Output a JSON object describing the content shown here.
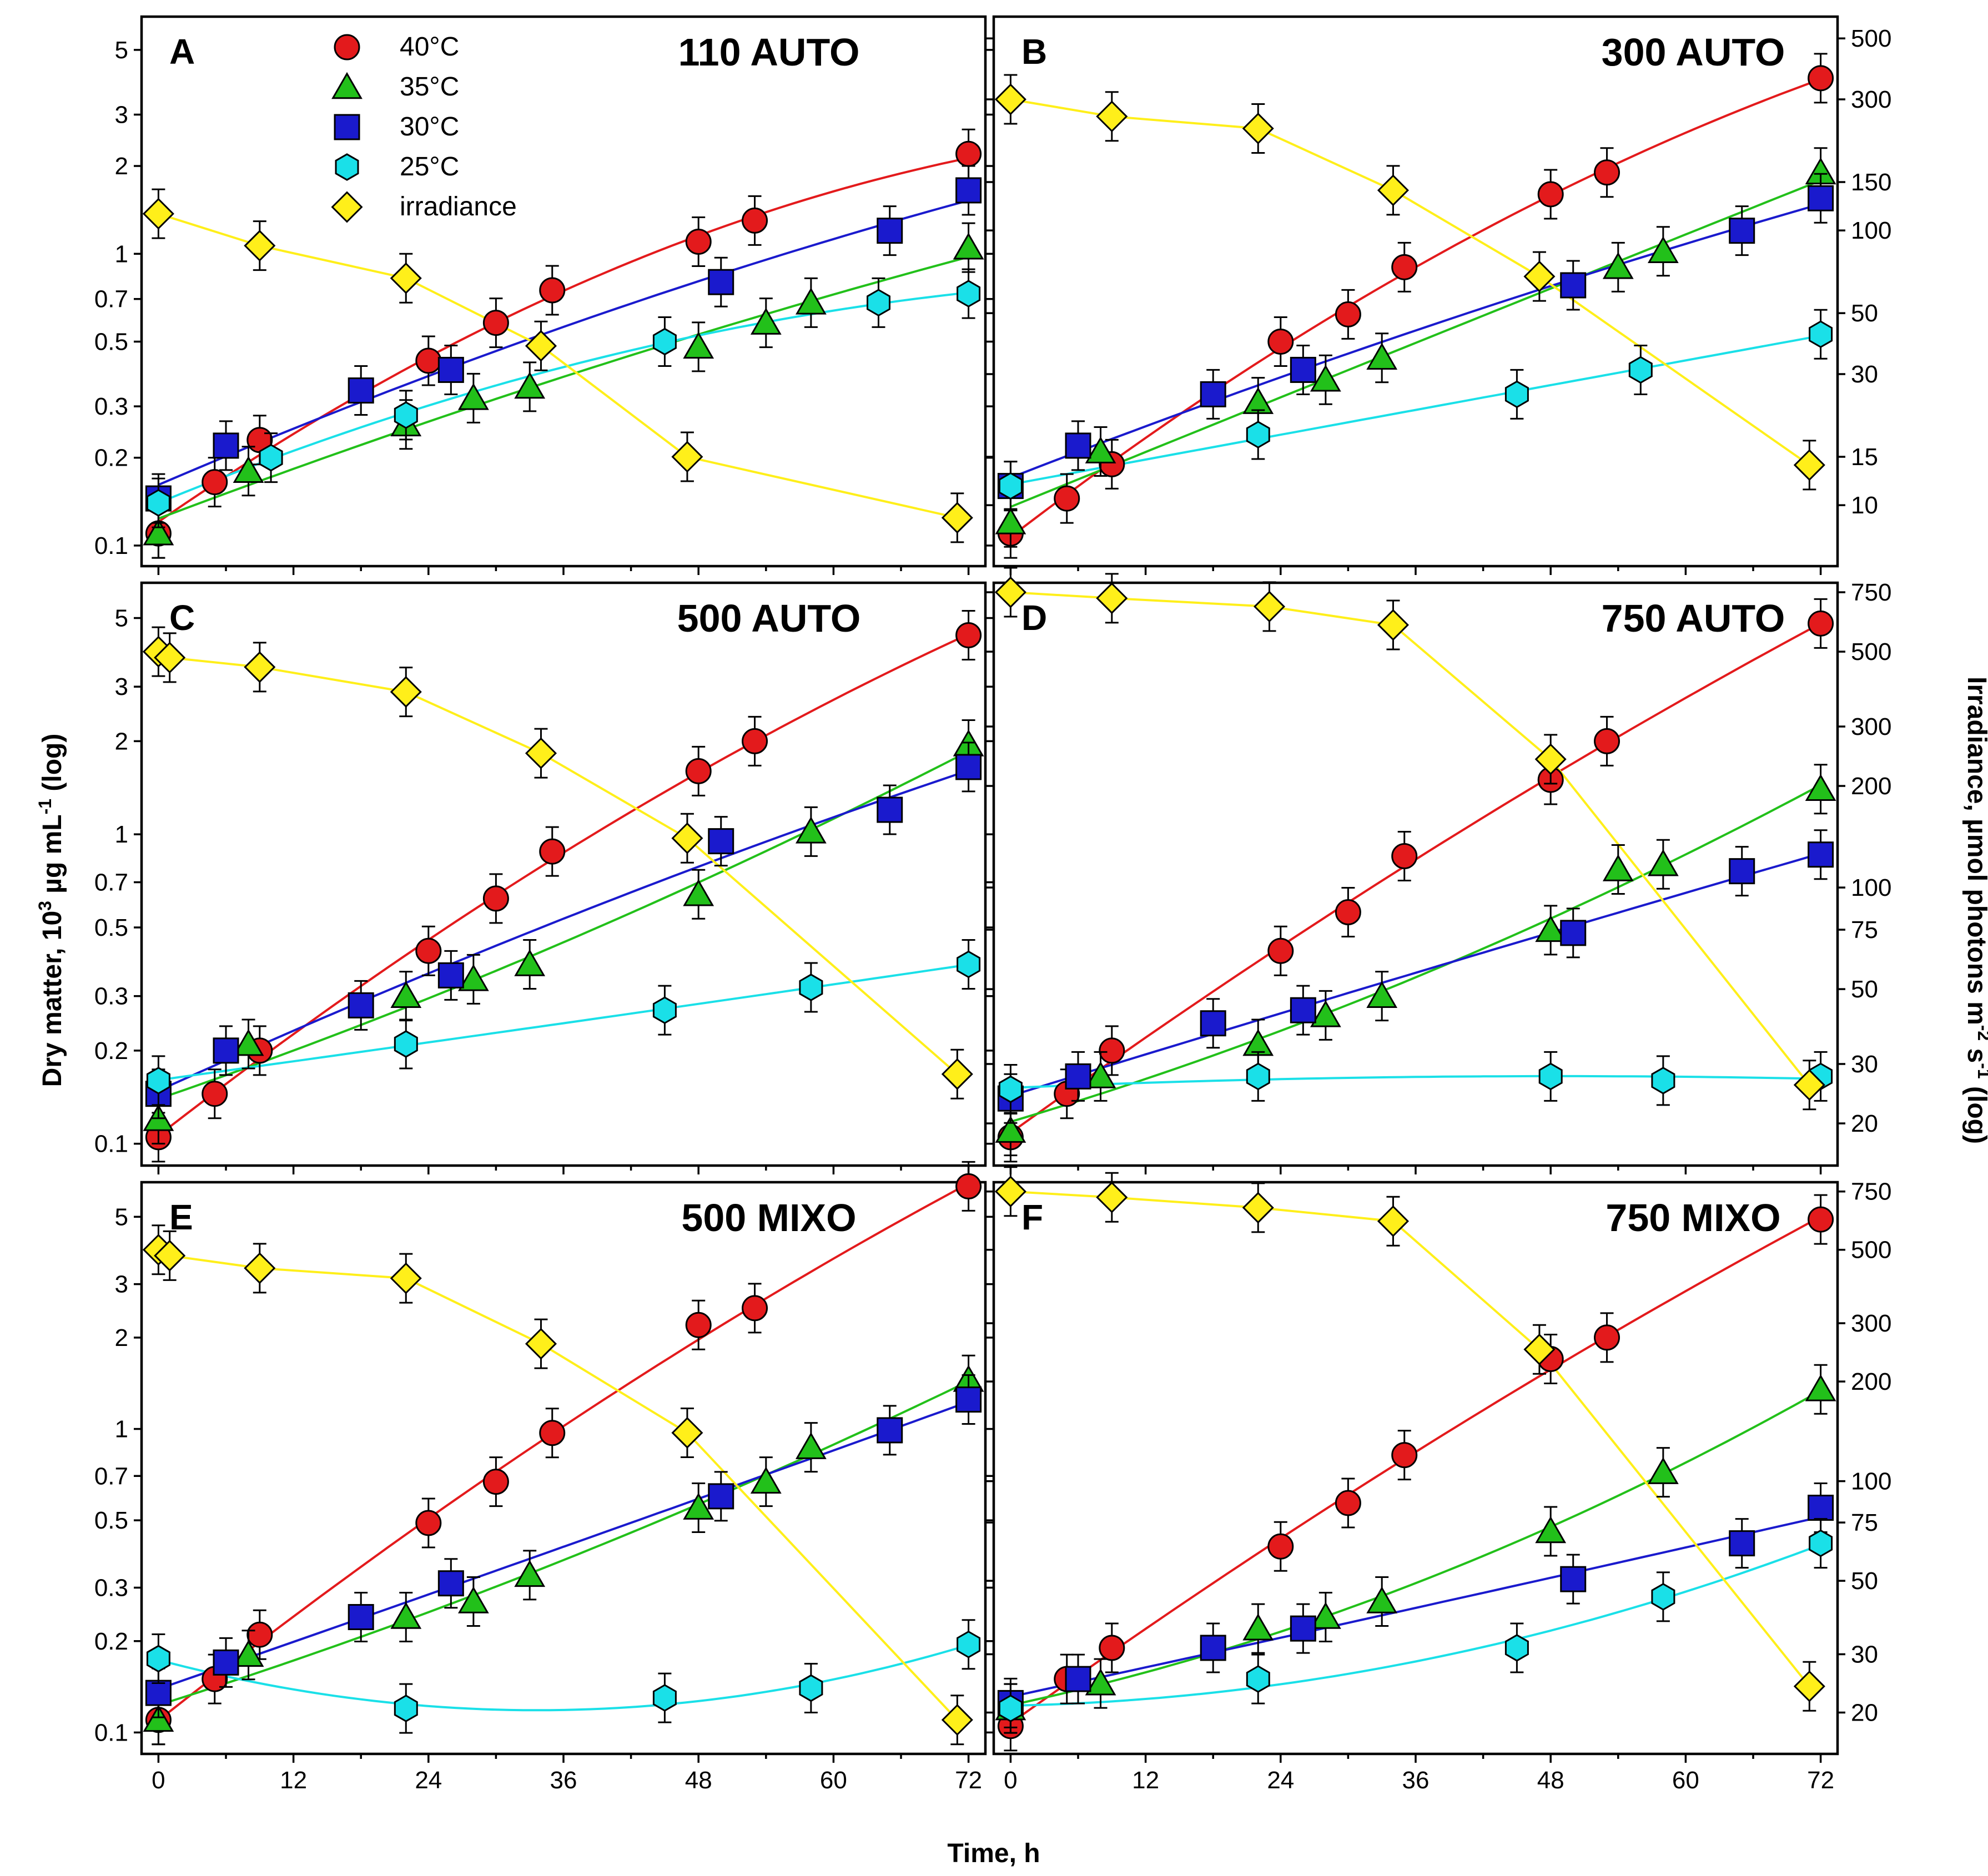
{
  "figure": {
    "x_label": "Time, h",
    "y_label_left": {
      "a": "Dry matter, 10",
      "sup1": "3",
      "b": " µg mL",
      "sup2": "-1",
      "c": " (log)"
    },
    "y_label_right": {
      "a": "Irradiance, µmol photons m",
      "sup1": "-2",
      "b": " s",
      "sup2": "-1",
      "c": " (log)"
    },
    "legend": [
      "40°C",
      "35°C",
      "30°C",
      "25°C",
      "irradiance"
    ]
  },
  "chart_data": [
    {
      "type": "scatter",
      "panel": "A",
      "title": "110 AUTO",
      "xlabel": "Time, h",
      "ylabel": "Dry matter, 10^3 µg mL-1 (log)",
      "y2label": "Irradiance, µmol photons m-2 s-1 (log)",
      "xlim": [
        -1.5,
        73.5
      ],
      "ylim": [
        0.085,
        6.5
      ],
      "y2lim": [
        6,
        600
      ],
      "xticks": [
        0,
        12,
        24,
        36,
        48,
        60,
        72
      ],
      "yticks": [
        0.1,
        0.2,
        0.3,
        0.5,
        0.7,
        1,
        2,
        3,
        5
      ],
      "y2ticks": [
        10,
        15,
        30,
        50,
        100,
        150,
        300,
        500
      ],
      "fit": "quadratic in log(y) for temperature series; straight segments for irradiance",
      "series": [
        {
          "name": "40°C",
          "color": "#e31a1c",
          "marker": "circle",
          "x": [
            0,
            5,
            9,
            24,
            30,
            35,
            48,
            53,
            72
          ],
          "y": [
            0.11,
            0.165,
            0.23,
            0.43,
            0.58,
            0.75,
            1.1,
            1.3,
            2.2
          ]
        },
        {
          "name": "35°C",
          "color": "#22c01a",
          "marker": "triangle",
          "x": [
            0,
            8,
            22,
            28,
            33,
            48,
            54,
            58,
            72
          ],
          "y": [
            0.11,
            0.18,
            0.26,
            0.32,
            0.35,
            0.48,
            0.58,
            0.68,
            1.05
          ]
        },
        {
          "name": "30°C",
          "color": "#1a1acd",
          "marker": "square",
          "x": [
            0,
            6,
            18,
            26,
            50,
            65,
            72
          ],
          "y": [
            0.145,
            0.22,
            0.34,
            0.4,
            0.8,
            1.2,
            1.65
          ]
        },
        {
          "name": "25°C",
          "color": "#1ae0e8",
          "marker": "hexagon",
          "x": [
            0,
            10,
            22,
            45,
            64,
            72
          ],
          "y": [
            0.14,
            0.2,
            0.28,
            0.5,
            0.68,
            0.73
          ]
        },
        {
          "name": "irradiance",
          "color": "#ffef1a",
          "marker": "diamond",
          "axis": "right",
          "x": [
            0,
            9,
            22,
            34,
            47,
            71
          ],
          "y": [
            115,
            88,
            67,
            38,
            15,
            9
          ]
        }
      ]
    },
    {
      "type": "scatter",
      "panel": "B",
      "title": "300 AUTO",
      "xlabel": "Time, h",
      "xlim": [
        -1.5,
        73.5
      ],
      "ylim": [
        0.085,
        6.5
      ],
      "y2lim": [
        6,
        600
      ],
      "xticks": [
        0,
        12,
        24,
        36,
        48,
        60,
        72
      ],
      "yticks": [
        0.1,
        0.2,
        0.3,
        0.5,
        0.7,
        1,
        2,
        3,
        5
      ],
      "y2ticks": [
        10,
        15,
        30,
        50,
        100,
        150,
        300,
        500
      ],
      "series": [
        {
          "name": "40°C",
          "color": "#e31a1c",
          "marker": "circle",
          "x": [
            0,
            5,
            9,
            24,
            30,
            35,
            48,
            53,
            72
          ],
          "y": [
            0.11,
            0.145,
            0.19,
            0.5,
            0.62,
            0.9,
            1.6,
            1.9,
            4.0
          ]
        },
        {
          "name": "35°C",
          "color": "#22c01a",
          "marker": "triangle",
          "x": [
            0,
            8,
            22,
            28,
            33,
            54,
            58,
            72
          ],
          "y": [
            0.12,
            0.21,
            0.31,
            0.37,
            0.44,
            0.9,
            1.02,
            1.9
          ]
        },
        {
          "name": "30°C",
          "color": "#1a1acd",
          "marker": "square",
          "x": [
            0,
            6,
            18,
            26,
            50,
            65,
            72
          ],
          "y": [
            0.16,
            0.22,
            0.33,
            0.4,
            0.78,
            1.2,
            1.55
          ]
        },
        {
          "name": "25°C",
          "color": "#1ae0e8",
          "marker": "hexagon",
          "x": [
            0,
            22,
            45,
            56,
            72
          ],
          "y": [
            0.16,
            0.24,
            0.33,
            0.4,
            0.53
          ]
        },
        {
          "name": "irradiance",
          "color": "#ffef1a",
          "marker": "diamond",
          "axis": "right",
          "x": [
            0,
            9,
            22,
            34,
            47,
            71
          ],
          "y": [
            300,
            260,
            235,
            140,
            68,
            14
          ]
        }
      ]
    },
    {
      "type": "scatter",
      "panel": "C",
      "title": "500 AUTO",
      "xlabel": "Time, h",
      "xlim": [
        -1.5,
        73.5
      ],
      "ylim": [
        0.085,
        6.5
      ],
      "y2lim": [
        15,
        800
      ],
      "xticks": [
        0,
        12,
        24,
        36,
        48,
        60,
        72
      ],
      "yticks": [
        0.1,
        0.2,
        0.3,
        0.5,
        0.7,
        1,
        2,
        3,
        5
      ],
      "y2ticks": [
        20,
        30,
        50,
        75,
        100,
        200,
        300,
        500,
        750
      ],
      "series": [
        {
          "name": "40°C",
          "color": "#e31a1c",
          "marker": "circle",
          "x": [
            0,
            5,
            9,
            24,
            30,
            35,
            48,
            53,
            72
          ],
          "y": [
            0.105,
            0.145,
            0.2,
            0.42,
            0.62,
            0.88,
            1.6,
            2.0,
            4.4
          ]
        },
        {
          "name": "35°C",
          "color": "#22c01a",
          "marker": "triangle",
          "x": [
            0,
            8,
            22,
            28,
            33,
            48,
            58,
            72
          ],
          "y": [
            0.12,
            0.21,
            0.3,
            0.34,
            0.38,
            0.64,
            1.02,
            1.95
          ]
        },
        {
          "name": "30°C",
          "color": "#1a1acd",
          "marker": "square",
          "x": [
            0,
            6,
            18,
            26,
            50,
            65,
            72
          ],
          "y": [
            0.145,
            0.2,
            0.28,
            0.35,
            0.95,
            1.2,
            1.65
          ]
        },
        {
          "name": "25°C",
          "color": "#1ae0e8",
          "marker": "hexagon",
          "x": [
            0,
            22,
            45,
            58,
            72
          ],
          "y": [
            0.16,
            0.21,
            0.27,
            0.32,
            0.38
          ]
        },
        {
          "name": "irradiance",
          "color": "#ffef1a",
          "marker": "diamond",
          "axis": "right",
          "x": [
            0,
            1,
            9,
            22,
            34,
            47,
            71
          ],
          "y": [
            500,
            480,
            450,
            380,
            250,
            140,
            28
          ]
        }
      ]
    },
    {
      "type": "scatter",
      "panel": "D",
      "title": "750 AUTO",
      "xlabel": "Time, h",
      "xlim": [
        -1.5,
        73.5
      ],
      "ylim": [
        0.085,
        6.5
      ],
      "y2lim": [
        15,
        800
      ],
      "xticks": [
        0,
        12,
        24,
        36,
        48,
        60,
        72
      ],
      "yticks": [
        0.1,
        0.2,
        0.3,
        0.5,
        0.7,
        1,
        2,
        3,
        5
      ],
      "y2ticks": [
        20,
        30,
        50,
        75,
        100,
        200,
        300,
        500,
        750
      ],
      "series": [
        {
          "name": "40°C",
          "color": "#e31a1c",
          "marker": "circle",
          "x": [
            0,
            5,
            9,
            24,
            30,
            35,
            48,
            53,
            72
          ],
          "y": [
            0.105,
            0.145,
            0.2,
            0.42,
            0.56,
            0.85,
            1.5,
            2.0,
            4.8
          ]
        },
        {
          "name": "35°C",
          "color": "#22c01a",
          "marker": "triangle",
          "x": [
            0,
            8,
            22,
            28,
            33,
            48,
            54,
            58,
            72
          ],
          "y": [
            0.11,
            0.165,
            0.21,
            0.26,
            0.3,
            0.49,
            0.77,
            0.8,
            1.4
          ]
        },
        {
          "name": "30°C",
          "color": "#1a1acd",
          "marker": "square",
          "x": [
            0,
            6,
            18,
            26,
            50,
            65,
            72
          ],
          "y": [
            0.14,
            0.165,
            0.245,
            0.27,
            0.48,
            0.76,
            0.86
          ]
        },
        {
          "name": "25°C",
          "color": "#1ae0e8",
          "marker": "hexagon",
          "x": [
            0,
            22,
            48,
            58,
            72
          ],
          "y": [
            0.15,
            0.165,
            0.165,
            0.16,
            0.165
          ]
        },
        {
          "name": "irradiance",
          "color": "#ffef1a",
          "marker": "diamond",
          "axis": "right",
          "x": [
            0,
            9,
            23,
            34,
            48,
            71
          ],
          "y": [
            750,
            720,
            680,
            600,
            240,
            26
          ]
        }
      ]
    },
    {
      "type": "scatter",
      "panel": "E",
      "title": "500 MIXO",
      "xlabel": "Time, h",
      "xlim": [
        -1.5,
        73.5
      ],
      "ylim": [
        0.085,
        6.5
      ],
      "y2lim": [
        15,
        800
      ],
      "xticks": [
        0,
        12,
        24,
        36,
        48,
        60,
        72
      ],
      "yticks": [
        0.1,
        0.2,
        0.3,
        0.5,
        0.7,
        1,
        2,
        3,
        5
      ],
      "y2ticks": [
        20,
        30,
        50,
        75,
        100,
        200,
        300,
        500,
        750
      ],
      "series": [
        {
          "name": "40°C",
          "color": "#e31a1c",
          "marker": "circle",
          "x": [
            0,
            5,
            9,
            24,
            30,
            35,
            48,
            53,
            72
          ],
          "y": [
            0.11,
            0.15,
            0.21,
            0.49,
            0.67,
            0.97,
            2.2,
            2.5,
            6.3
          ]
        },
        {
          "name": "35°C",
          "color": "#22c01a",
          "marker": "triangle",
          "x": [
            0,
            8,
            22,
            28,
            33,
            48,
            54,
            58,
            72
          ],
          "y": [
            0.11,
            0.18,
            0.24,
            0.27,
            0.33,
            0.55,
            0.67,
            0.87,
            1.45
          ]
        },
        {
          "name": "30°C",
          "color": "#1a1acd",
          "marker": "square",
          "x": [
            0,
            6,
            18,
            26,
            50,
            65,
            72
          ],
          "y": [
            0.135,
            0.17,
            0.24,
            0.31,
            0.6,
            0.99,
            1.25
          ]
        },
        {
          "name": "25°C",
          "color": "#1ae0e8",
          "marker": "hexagon",
          "x": [
            0,
            22,
            45,
            58,
            72
          ],
          "y": [
            0.175,
            0.12,
            0.13,
            0.14,
            0.195
          ]
        },
        {
          "name": "irradiance",
          "color": "#ffef1a",
          "marker": "diamond",
          "axis": "right",
          "x": [
            0,
            1,
            9,
            22,
            34,
            47,
            71
          ],
          "y": [
            500,
            480,
            440,
            410,
            260,
            140,
            19
          ]
        }
      ]
    },
    {
      "type": "scatter",
      "panel": "F",
      "title": "750 MIXO",
      "xlabel": "Time, h",
      "xlim": [
        -1.5,
        73.5
      ],
      "ylim": [
        0.085,
        6.5
      ],
      "y2lim": [
        15,
        800
      ],
      "xticks": [
        0,
        12,
        24,
        36,
        48,
        60,
        72
      ],
      "yticks": [
        0.1,
        0.2,
        0.3,
        0.5,
        0.7,
        1,
        2,
        3,
        5
      ],
      "y2ticks": [
        20,
        30,
        50,
        75,
        100,
        200,
        300,
        500,
        750
      ],
      "series": [
        {
          "name": "40°C",
          "color": "#e31a1c",
          "marker": "circle",
          "x": [
            0,
            5,
            9,
            24,
            30,
            35,
            48,
            53,
            72
          ],
          "y": [
            0.105,
            0.15,
            0.19,
            0.41,
            0.57,
            0.82,
            1.7,
            2.0,
            4.9
          ]
        },
        {
          "name": "35°C",
          "color": "#22c01a",
          "marker": "triangle",
          "x": [
            0,
            8,
            22,
            28,
            33,
            48,
            58,
            72
          ],
          "y": [
            0.12,
            0.145,
            0.22,
            0.24,
            0.27,
            0.46,
            0.72,
            1.35
          ]
        },
        {
          "name": "30°C",
          "color": "#1a1acd",
          "marker": "square",
          "x": [
            0,
            6,
            18,
            26,
            50,
            65,
            72
          ],
          "y": [
            0.125,
            0.15,
            0.19,
            0.22,
            0.32,
            0.42,
            0.55
          ]
        },
        {
          "name": "25°C",
          "color": "#1ae0e8",
          "marker": "hexagon",
          "x": [
            0,
            22,
            45,
            58,
            72
          ],
          "y": [
            0.12,
            0.15,
            0.19,
            0.28,
            0.42
          ]
        },
        {
          "name": "irradiance",
          "color": "#ffef1a",
          "marker": "diamond",
          "axis": "right",
          "x": [
            0,
            9,
            22,
            34,
            47,
            71
          ],
          "y": [
            750,
            720,
            670,
            610,
            250,
            24
          ]
        }
      ]
    }
  ]
}
